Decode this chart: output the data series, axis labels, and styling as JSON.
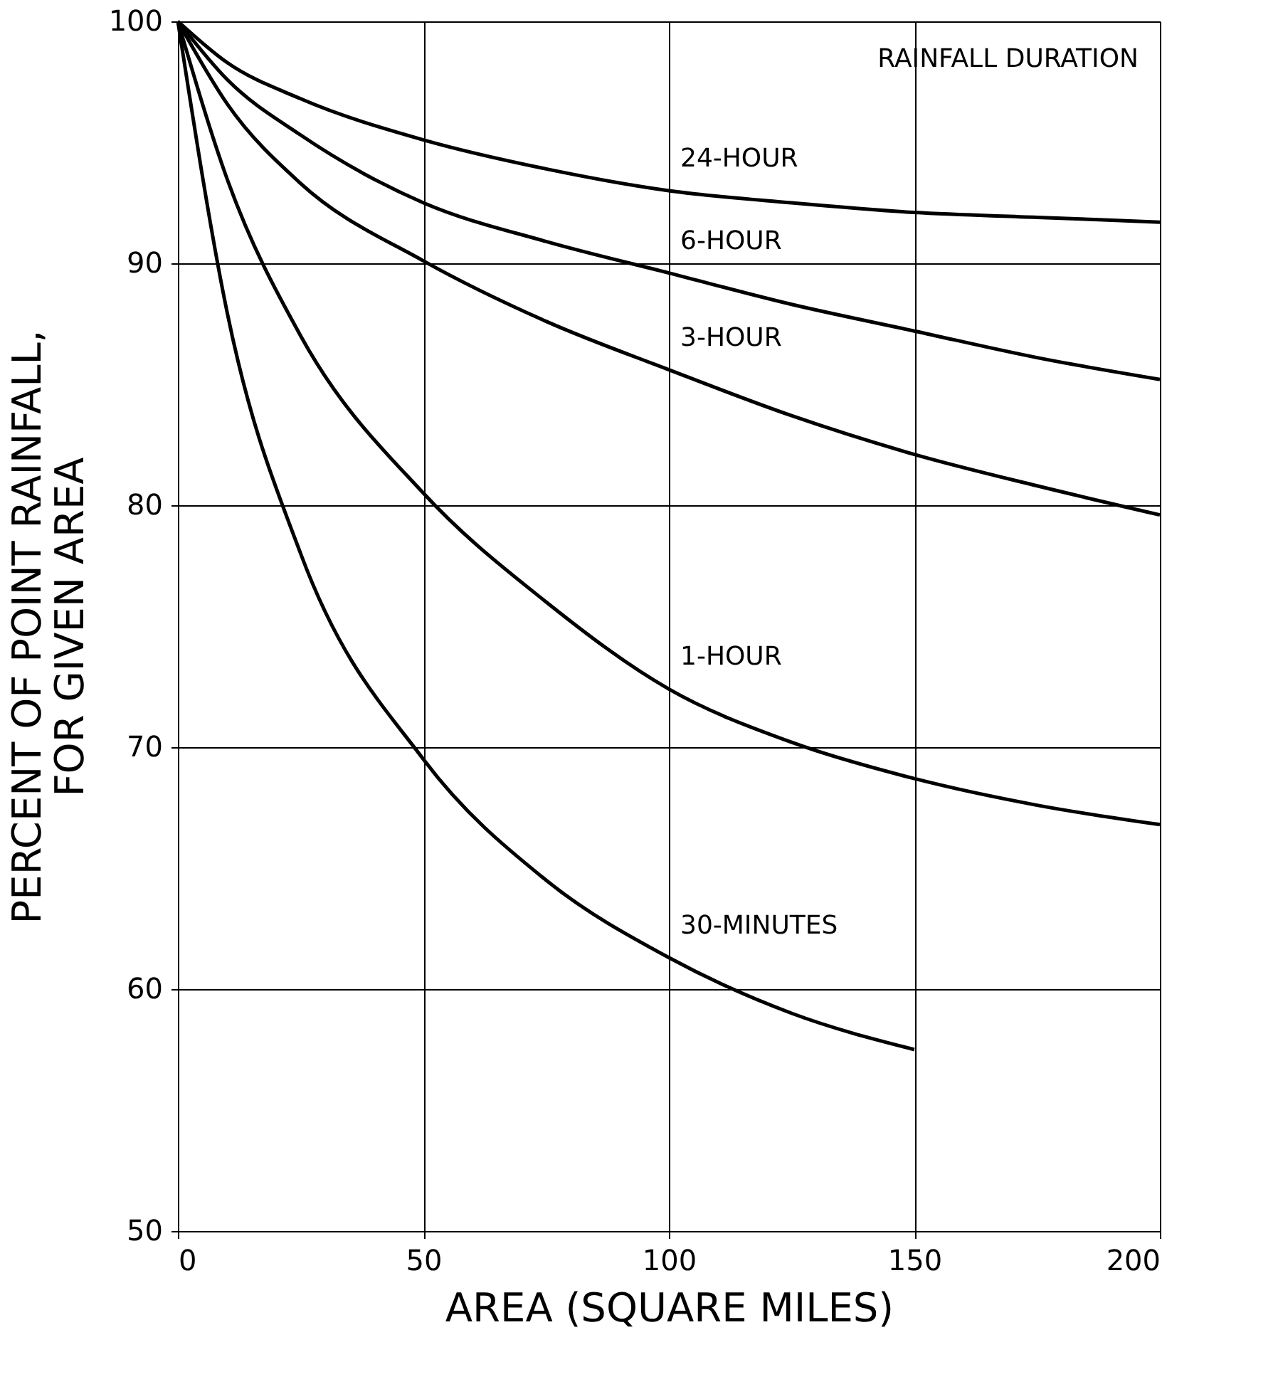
{
  "chart_data": {
    "type": "line",
    "xlabel": "AREA (SQUARE MILES)",
    "ylabel": "PERCENT OF POINT RAINFALL,\nFOR GIVEN AREA",
    "annotations": [
      "RAINFALL DURATION"
    ],
    "xlim": [
      0,
      200
    ],
    "ylim": [
      50,
      100
    ],
    "xticks": [
      0,
      50,
      100,
      150,
      200
    ],
    "yticks": [
      50,
      60,
      70,
      80,
      90,
      100
    ],
    "grid": true,
    "marker": "none",
    "line_style": "solid",
    "series": [
      {
        "name": "24-HOUR",
        "color": "#000000",
        "x": [
          0,
          10,
          25,
          50,
          75,
          100,
          125,
          150,
          175,
          200
        ],
        "values": [
          100,
          98.3,
          96.8,
          95.1,
          93.9,
          93.0,
          92.5,
          92.1,
          91.9,
          91.7
        ]
      },
      {
        "name": "6-HOUR",
        "color": "#000000",
        "x": [
          0,
          10,
          25,
          50,
          75,
          100,
          125,
          150,
          175,
          200
        ],
        "values": [
          100,
          97.6,
          95.3,
          92.5,
          90.9,
          89.6,
          88.3,
          87.2,
          86.1,
          85.2
        ]
      },
      {
        "name": "3-HOUR",
        "color": "#000000",
        "x": [
          0,
          10,
          25,
          50,
          75,
          100,
          125,
          150,
          175,
          200
        ],
        "values": [
          100,
          96.6,
          93.3,
          90.1,
          87.6,
          85.6,
          83.7,
          82.1,
          80.8,
          79.6
        ]
      },
      {
        "name": "1-HOUR",
        "color": "#000000",
        "x": [
          0,
          10,
          25,
          50,
          75,
          100,
          125,
          150,
          175,
          200
        ],
        "values": [
          100,
          93.5,
          87.0,
          80.5,
          76.0,
          72.4,
          70.2,
          68.7,
          67.6,
          66.8
        ]
      },
      {
        "name": "30-MINUTES",
        "color": "#000000",
        "x": [
          0,
          10,
          25,
          50,
          75,
          100,
          125,
          150
        ],
        "values": [
          100,
          88.0,
          78.0,
          69.5,
          64.5,
          61.3,
          59.0,
          57.5
        ]
      }
    ]
  }
}
